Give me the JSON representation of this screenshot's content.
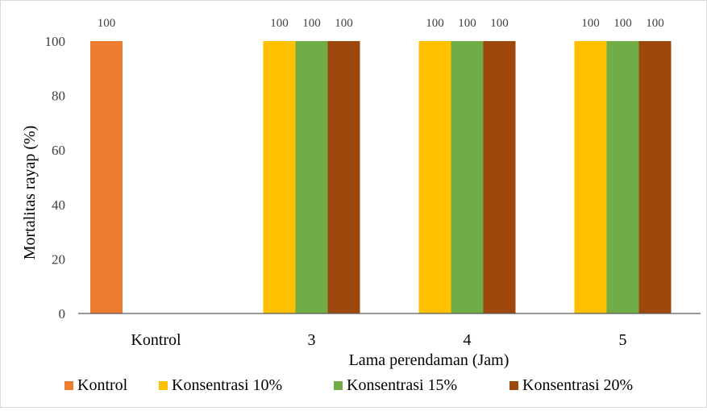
{
  "chart_data": {
    "type": "bar",
    "title": "",
    "xlabel": "Lama perendaman  (Jam)",
    "ylabel": "Mortalitas  rayap  (%)",
    "ylim": [
      0,
      100
    ],
    "yticks": [
      "0",
      "20",
      "40",
      "60",
      "80",
      "100"
    ],
    "grid": false,
    "legend_position": "bottom",
    "categories": [
      "Kontrol",
      "3",
      "4",
      "5"
    ],
    "series": [
      {
        "name": "Kontrol",
        "color": "#ED7D31",
        "values": [
          100,
          null,
          null,
          null
        ]
      },
      {
        "name": "Konsentrasi 10%",
        "color": "#FFC000",
        "values": [
          null,
          100,
          100,
          100
        ]
      },
      {
        "name": "Konsentrasi 15%",
        "color": "#70AD47",
        "values": [
          null,
          100,
          100,
          100
        ]
      },
      {
        "name": "Konsentrasi 20%",
        "color": "#9E480E",
        "values": [
          null,
          100,
          100,
          100
        ]
      }
    ],
    "data_labels": [
      "100",
      "100",
      "100",
      "100",
      "100",
      "100",
      "100",
      "100",
      "100",
      "100"
    ]
  }
}
